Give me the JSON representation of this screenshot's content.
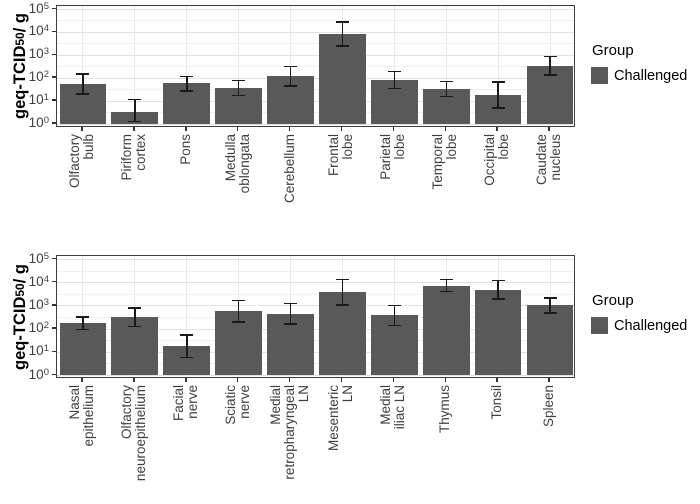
{
  "figure": {
    "background": "#ffffff"
  },
  "chart_data": [
    {
      "type": "bar",
      "title": "",
      "panel_name": "brain-regions",
      "ylabel": "geq-TCID50/ g",
      "ylabel_parts": {
        "prefix": "geq-TCID",
        "sub": "50",
        "suffix": "/ g"
      },
      "y_scale": "log10",
      "y_tick_exponents": [
        0,
        1,
        2,
        3,
        4,
        5
      ],
      "ylim": [
        1,
        100000
      ],
      "grid": "major+minor horizontal, major vertical",
      "categories": [
        [
          "Olfactory",
          "bulb"
        ],
        [
          "Piriform",
          "cortex"
        ],
        [
          "Pons"
        ],
        [
          "Medulla",
          "oblongata"
        ],
        [
          "Cerebellum"
        ],
        [
          "Frontal",
          "lobe"
        ],
        [
          "Parietal",
          "lobe"
        ],
        [
          "Temporal",
          "lobe"
        ],
        [
          "Occipital",
          "lobe"
        ],
        [
          "Caudate",
          "nucleus"
        ]
      ],
      "series": [
        {
          "name": "Challenged",
          "values": [
            55,
            3.5,
            60,
            38,
            120,
            8500,
            85,
            33,
            19,
            350
          ],
          "err_hi": [
            155,
            12,
            120,
            80,
            330,
            28000,
            200,
            70,
            67,
            900
          ],
          "err_lo": [
            20,
            1.3,
            28,
            18,
            45,
            2600,
            36,
            16,
            5,
            135
          ]
        }
      ],
      "bar_color": "#595959",
      "error_color": "#1a1a1a",
      "legend": {
        "title": "Group",
        "position": "right",
        "entries": [
          {
            "label": "Challenged",
            "color": "#595959"
          }
        ]
      }
    },
    {
      "type": "bar",
      "title": "",
      "panel_name": "peripheral-tissues",
      "ylabel": "geq-TCID50/ g",
      "ylabel_parts": {
        "prefix": "geq-TCID",
        "sub": "50",
        "suffix": "/ g"
      },
      "y_scale": "log10",
      "y_tick_exponents": [
        0,
        1,
        2,
        3,
        4,
        5
      ],
      "ylim": [
        1,
        100000
      ],
      "grid": "major+minor horizontal, major vertical",
      "categories": [
        [
          "Nasal",
          "epithelium"
        ],
        [
          "Olfactory",
          "neuroepithelium"
        ],
        [
          "Facial",
          "nerve"
        ],
        [
          "Sciatic",
          "nerve"
        ],
        [
          "Medial",
          "retropharyngeal",
          "LN"
        ],
        [
          "Mesenteric",
          "LN"
        ],
        [
          "Medial",
          "iliac LN"
        ],
        [
          "Thymus"
        ],
        [
          "Tonsil"
        ],
        [
          "Spleen"
        ]
      ],
      "series": [
        {
          "name": "Challenged",
          "values": [
            180,
            330,
            18,
            580,
            460,
            3900,
            390,
            7500,
            5000,
            1050
          ],
          "err_hi": [
            340,
            830,
            55,
            1700,
            1300,
            13500,
            1050,
            13500,
            12500,
            2200
          ],
          "err_lo": [
            95,
            130,
            6,
            200,
            165,
            1100,
            145,
            4200,
            2000,
            500
          ]
        }
      ],
      "bar_color": "#595959",
      "error_color": "#1a1a1a",
      "legend": {
        "title": "Group",
        "position": "right",
        "entries": [
          {
            "label": "Challenged",
            "color": "#595959"
          }
        ]
      }
    }
  ]
}
